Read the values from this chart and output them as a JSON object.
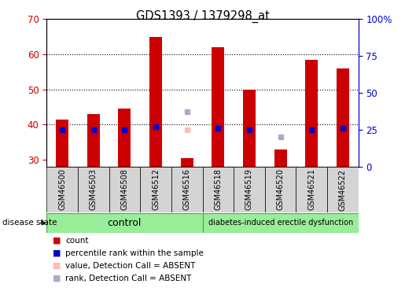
{
  "title": "GDS1393 / 1379298_at",
  "samples": [
    "GSM46500",
    "GSM46503",
    "GSM46508",
    "GSM46512",
    "GSM46516",
    "GSM46518",
    "GSM46519",
    "GSM46520",
    "GSM46521",
    "GSM46522"
  ],
  "counts": [
    41.5,
    43.0,
    44.5,
    65.0,
    30.5,
    62.0,
    50.0,
    33.0,
    58.5,
    56.0
  ],
  "percentile_ranks": [
    25,
    25,
    25,
    27,
    null,
    26,
    25,
    null,
    25,
    26
  ],
  "absent_value_vals": [
    null,
    null,
    null,
    null,
    38.5,
    null,
    null,
    null,
    null,
    null
  ],
  "absent_rank_vals": [
    null,
    null,
    null,
    null,
    37.5,
    null,
    null,
    20.0,
    null,
    null
  ],
  "ylim_left": [
    28,
    70
  ],
  "ylim_right": [
    0,
    100
  ],
  "yticks_left": [
    30,
    40,
    50,
    60,
    70
  ],
  "yticks_right": [
    0,
    25,
    50,
    75,
    100
  ],
  "ytick_right_labels": [
    "0",
    "25",
    "50",
    "75",
    "100%"
  ],
  "left_axis_color": "#cc0000",
  "right_axis_color": "#0000cc",
  "bar_color": "#cc0000",
  "bar_width": 0.4,
  "dot_color_present": "#0000cc",
  "dot_color_absent_value": "#ffbbbb",
  "dot_color_absent_rank": "#aaaacc",
  "control_label": "control",
  "disease_label": "diabetes-induced erectile dysfunction",
  "group_color": "#99ee99",
  "group_border_color": "#44aa44",
  "legend_labels": [
    "count",
    "percentile rank within the sample",
    "value, Detection Call = ABSENT",
    "rank, Detection Call = ABSENT"
  ],
  "legend_colors": [
    "#cc0000",
    "#0000cc",
    "#ffbbbb",
    "#aaaacc"
  ]
}
